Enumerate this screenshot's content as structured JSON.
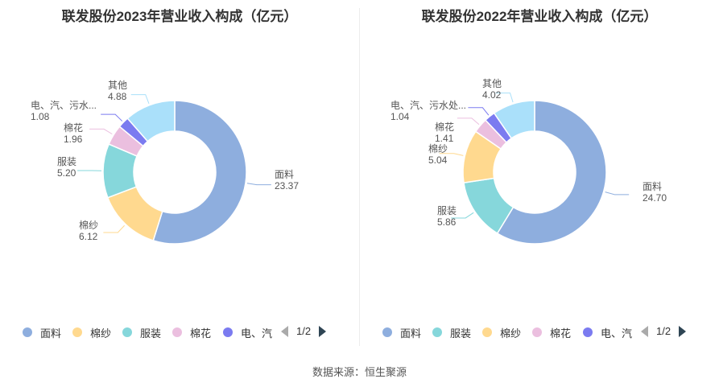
{
  "source_text": "数据来源：恒生聚源",
  "chart_data": [
    {
      "type": "pie",
      "variant": "donut",
      "title": "联发股份2023年营业收入构成（亿元）",
      "slices": [
        {
          "name": "面料",
          "value": 23.37,
          "value_label": "23.37",
          "color": "#8eaede"
        },
        {
          "name": "棉纱",
          "value": 6.12,
          "value_label": "6.12",
          "color": "#ffd98f"
        },
        {
          "name": "服装",
          "value": 5.2,
          "value_label": "5.20",
          "color": "#86d7db"
        },
        {
          "name": "棉花",
          "value": 1.96,
          "value_label": "1.96",
          "color": "#ebbfdf"
        },
        {
          "name": "电、汽、污水...",
          "value": 1.08,
          "value_label": "1.08",
          "color": "#7b7bf0"
        },
        {
          "name": "其他",
          "value": 4.88,
          "value_label": "4.88",
          "color": "#aae0fa"
        }
      ],
      "legend": {
        "items": [
          "面料",
          "棉纱",
          "服装",
          "棉花",
          "电、汽"
        ],
        "colors": [
          "#8eaede",
          "#ffd98f",
          "#86d7db",
          "#ebbfdf",
          "#7b7bf0"
        ],
        "page": "1/2"
      }
    },
    {
      "type": "pie",
      "variant": "donut",
      "title": "联发股份2022年营业收入构成（亿元）",
      "slices": [
        {
          "name": "面料",
          "value": 24.7,
          "value_label": "24.70",
          "color": "#8eaede"
        },
        {
          "name": "服装",
          "value": 5.86,
          "value_label": "5.86",
          "color": "#86d7db"
        },
        {
          "name": "棉纱",
          "value": 5.04,
          "value_label": "5.04",
          "color": "#ffd98f"
        },
        {
          "name": "棉花",
          "value": 1.41,
          "value_label": "1.41",
          "color": "#ebbfdf"
        },
        {
          "name": "电、汽、污水处...",
          "value": 1.04,
          "value_label": "1.04",
          "color": "#7b7bf0"
        },
        {
          "name": "其他",
          "value": 4.02,
          "value_label": "4.02",
          "color": "#aae0fa"
        }
      ],
      "legend": {
        "items": [
          "面料",
          "服装",
          "棉纱",
          "棉花",
          "电、汽"
        ],
        "colors": [
          "#8eaede",
          "#86d7db",
          "#ffd98f",
          "#ebbfdf",
          "#7b7bf0"
        ],
        "page": "1/2"
      }
    }
  ]
}
